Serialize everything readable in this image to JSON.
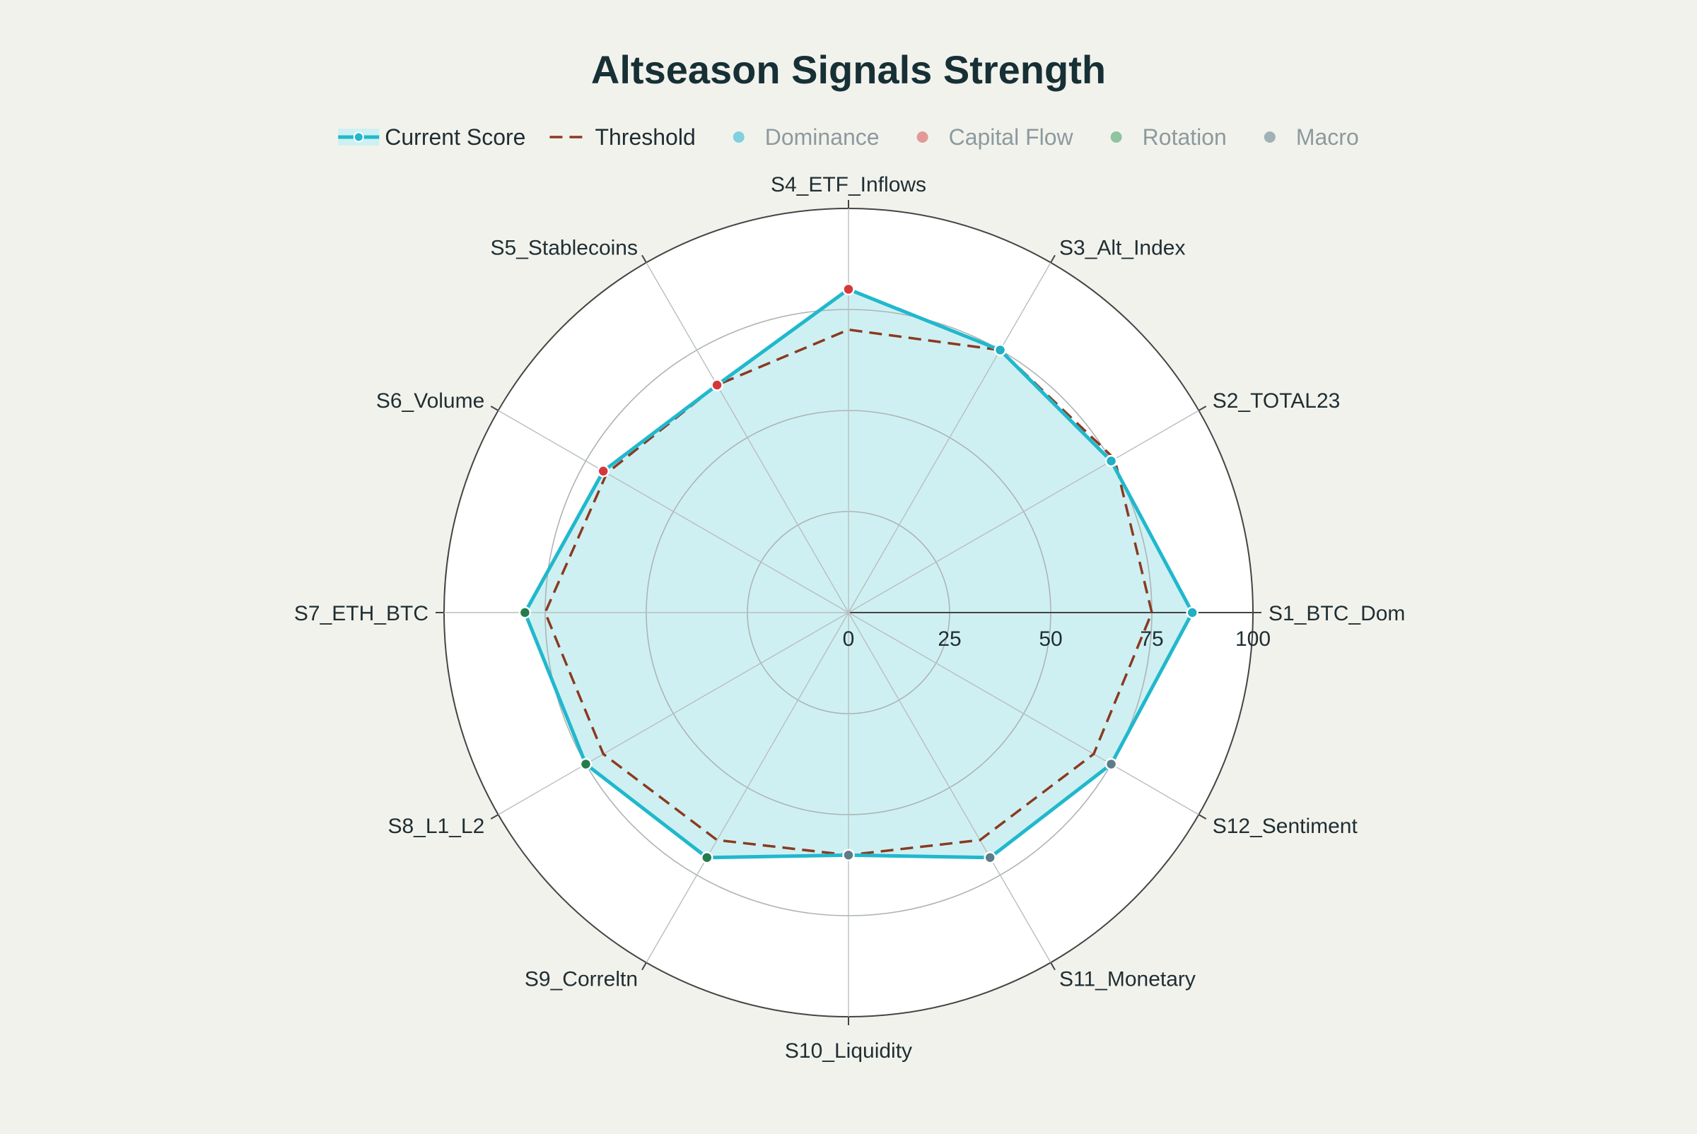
{
  "chart_data": {
    "type": "radar",
    "title": "Altseason Signals Strength",
    "categories": [
      "S1_BTC_Dom",
      "S2_TOTAL23",
      "S3_Alt_Index",
      "S4_ETF_Inflows",
      "S5_Stablecoins",
      "S6_Volume",
      "S7_ETH_BTC",
      "S8_L1_L2",
      "S9_Correltn",
      "S10_Liquidity",
      "S11_Monetary",
      "S12_Sentiment"
    ],
    "radial_range": [
      0,
      100
    ],
    "radial_ticks": [
      "0",
      "25",
      "50",
      "75",
      "100"
    ],
    "radial_tick_values": [
      0,
      25,
      50,
      75,
      100
    ],
    "series": [
      {
        "name": "Current Score",
        "values": [
          85,
          75,
          75,
          80,
          65,
          70,
          80,
          75,
          70,
          60,
          70,
          75
        ],
        "color": "#21B8CD",
        "fill": "#CFF0F2",
        "style": "solid"
      },
      {
        "name": "Threshold",
        "values": [
          75,
          76,
          75,
          70,
          65,
          69,
          75,
          70,
          65,
          60,
          65,
          70
        ],
        "color": "#8A3A20",
        "style": "dashed"
      }
    ],
    "legend": {
      "position": "top",
      "items": [
        {
          "name": "Current Score",
          "color": "#21B8CD",
          "symbol": "line-marker",
          "active": true
        },
        {
          "name": "Threshold",
          "color": "#8A3A20",
          "symbol": "dash",
          "active": true
        },
        {
          "name": "Dominance",
          "color": "#7ED2DD",
          "symbol": "dot",
          "active": false
        },
        {
          "name": "Capital Flow",
          "color": "#E39A96",
          "symbol": "dot",
          "active": false
        },
        {
          "name": "Rotation",
          "color": "#8EC4A0",
          "symbol": "dot",
          "active": false
        },
        {
          "name": "Macro",
          "color": "#9FB2B5",
          "symbol": "dot",
          "active": false
        }
      ]
    },
    "groups": {
      "Dominance": [
        "S1_BTC_Dom",
        "S2_TOTAL23",
        "S3_Alt_Index"
      ],
      "Capital Flow": [
        "S4_ETF_Inflows",
        "S5_Stablecoins",
        "S6_Volume"
      ],
      "Rotation": [
        "S7_ETH_BTC",
        "S8_L1_L2",
        "S9_Correltn"
      ],
      "Macro": [
        "S10_Liquidity",
        "S11_Monetary",
        "S12_Sentiment"
      ]
    },
    "group_colors": {
      "Dominance": "#20AFC3",
      "Capital Flow": "#D7373A",
      "Rotation": "#237C4D",
      "Macro": "#5E7C86"
    },
    "grid": true
  }
}
